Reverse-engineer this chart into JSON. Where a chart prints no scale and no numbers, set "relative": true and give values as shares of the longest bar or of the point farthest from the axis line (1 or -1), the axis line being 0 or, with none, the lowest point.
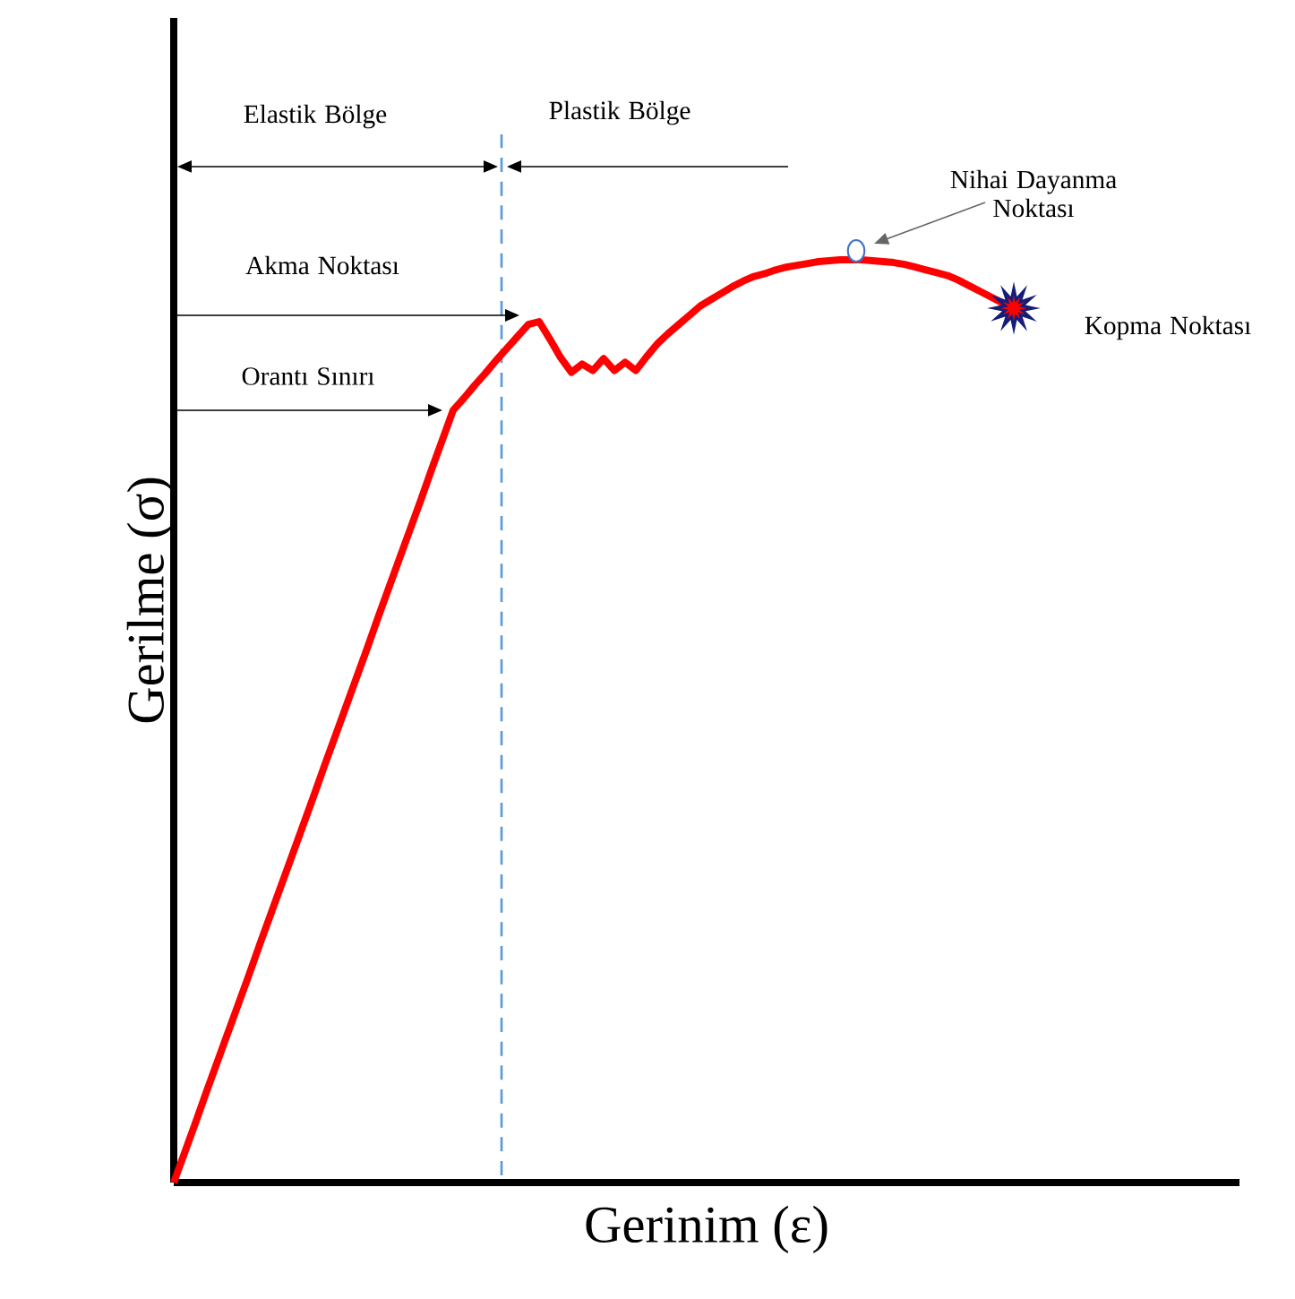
{
  "chart_data": {
    "type": "line",
    "relative": true,
    "xlabel": "Gerinim (ε)",
    "ylabel": "Gerilme (σ)",
    "color": "#ff0000",
    "categories": [
      null,
      null,
      null,
      null,
      null,
      null,
      null,
      null,
      null,
      null,
      null,
      null,
      null,
      null,
      null,
      null,
      null,
      null,
      null,
      null,
      null,
      null,
      null,
      null,
      null,
      null,
      null,
      null,
      null,
      null,
      null,
      null,
      null,
      null,
      null,
      null,
      null,
      null,
      null,
      null,
      null,
      null,
      null,
      null,
      null,
      null,
      null,
      null,
      null,
      null,
      null,
      null,
      null,
      null,
      null,
      null,
      null,
      null,
      null,
      null,
      null,
      null,
      null,
      null,
      null,
      null,
      null,
      null,
      null,
      null,
      null,
      null,
      null,
      null,
      null,
      null,
      null,
      null,
      null
    ],
    "values": [
      0,
      0.032,
      0.064,
      0.097,
      0.129,
      0.161,
      0.193,
      0.225,
      0.258,
      0.29,
      0.322,
      0.354,
      0.386,
      0.418,
      0.451,
      0.483,
      0.515,
      0.547,
      0.579,
      0.612,
      0.644,
      0.676,
      0.708,
      0.74,
      0.773,
      0.805,
      0.837,
      0.85,
      0.864,
      0.877,
      0.891,
      0.904,
      0.917,
      0.93,
      0.933,
      0.914,
      0.894,
      0.878,
      0.887,
      0.88,
      0.893,
      0.88,
      0.889,
      0.88,
      0.895,
      0.909,
      0.92,
      0.93,
      0.94,
      0.95,
      0.957,
      0.964,
      0.971,
      0.977,
      0.982,
      0.985,
      0.989,
      0.992,
      0.994,
      0.996,
      0.998,
      0.999,
      1,
      1,
      1,
      0.999,
      0.998,
      0.997,
      0.995,
      0.992,
      0.989,
      0.986,
      0.983,
      0.978,
      0.972,
      0.966,
      0.96,
      0.954,
      0.948
    ],
    "annotations": [
      "Elastik Bölge",
      "Plastik Bölge",
      "Akma Noktası",
      "Orantı Sınırı",
      "Nihai Dayanma Noktası",
      "Kopma Noktası"
    ]
  }
}
